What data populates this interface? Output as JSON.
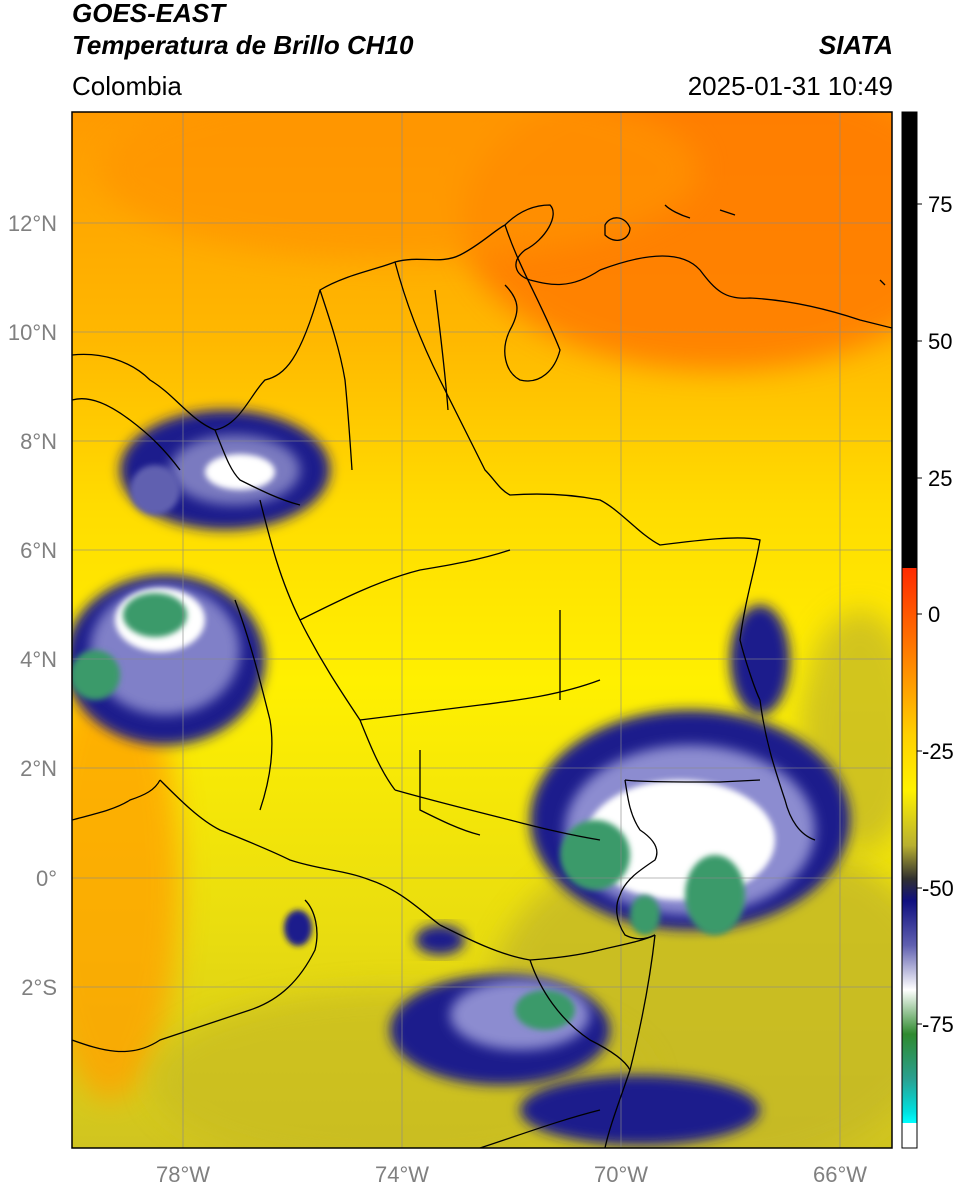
{
  "header": {
    "satellite": "GOES-EAST",
    "product": "Temperatura de Brillo CH10",
    "agency": "SIATA",
    "region": "Colombia",
    "datetime": "2025-01-31 10:49"
  },
  "map": {
    "lon_range": [
      -80,
      -65
    ],
    "lat_range": [
      -5,
      14
    ],
    "lat_ticks": [
      "12°N",
      "10°N",
      "8°N",
      "6°N",
      "4°N",
      "2°N",
      "0°",
      "2°S"
    ],
    "lon_ticks": [
      "78°W",
      "74°W",
      "70°W",
      "66°W"
    ],
    "colors": {
      "warm_orange": "#ff8c00",
      "orange": "#ffa600",
      "yellow": "#ffee00",
      "olive": "#c8be28",
      "navy": "#1a1a8c",
      "white": "#ffffff",
      "green": "#3a9a6a",
      "border": "#000000",
      "grid": "#8a8a8a"
    }
  },
  "colorbar": {
    "ticks": [
      "75",
      "50",
      "25",
      "0",
      "-25",
      "-50",
      "-75"
    ]
  }
}
